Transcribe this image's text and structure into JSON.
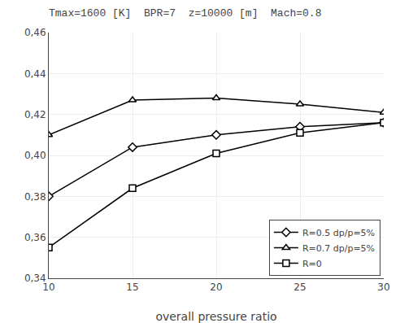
{
  "chart_data": {
    "type": "line",
    "title": "Tmax=1600 [K]  BPR=7  z=10000 [m]  Mach=0.8",
    "xlabel": "overall pressure ratio",
    "x": [
      10,
      15,
      20,
      25,
      30
    ],
    "series": [
      {
        "name": "R=0.5 dp/p=5%",
        "values": [
          0.38,
          0.404,
          0.41,
          0.414,
          0.416
        ],
        "marker": "diamond",
        "color": "#000000",
        "line_style": "solid"
      },
      {
        "name": "R=0.7 dp/p=5%",
        "values": [
          0.41,
          0.427,
          0.428,
          0.425,
          0.421
        ],
        "marker": "triangle",
        "color": "#000000",
        "line_style": "solid"
      },
      {
        "name": "R=0",
        "values": [
          0.355,
          0.384,
          0.401,
          0.411,
          0.416
        ],
        "marker": "square",
        "color": "#000000",
        "line_style": "solid"
      }
    ],
    "xlim": [
      10,
      30
    ],
    "ylim": [
      0.34,
      0.46
    ],
    "xticks": [
      10,
      15,
      20,
      25,
      30
    ],
    "yticks": [
      {
        "value": 0.34,
        "label": "0,34"
      },
      {
        "value": 0.36,
        "label": "0,36"
      },
      {
        "value": 0.38,
        "label": "0,38"
      },
      {
        "value": 0.4,
        "label": "0,40"
      },
      {
        "value": 0.42,
        "label": "0,42"
      },
      {
        "value": 0.44,
        "label": "0,44"
      },
      {
        "value": 0.46,
        "label": "0,46"
      }
    ],
    "grid": true,
    "legend": "lower right"
  }
}
